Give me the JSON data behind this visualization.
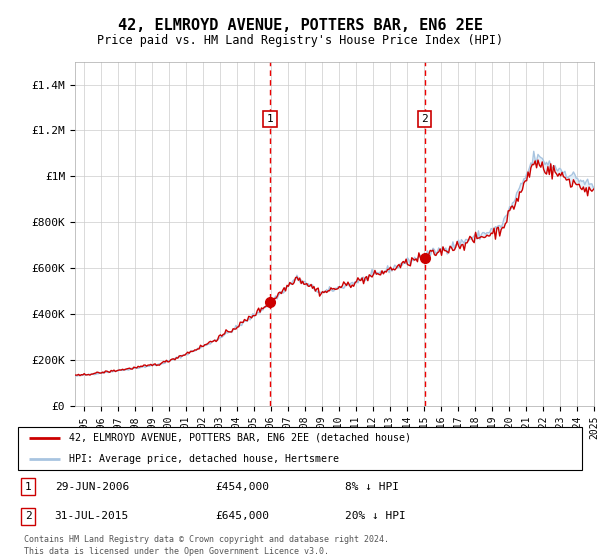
{
  "title": "42, ELMROYD AVENUE, POTTERS BAR, EN6 2EE",
  "subtitle": "Price paid vs. HM Land Registry's House Price Index (HPI)",
  "ylim": [
    0,
    1500000
  ],
  "yticks": [
    0,
    200000,
    400000,
    600000,
    800000,
    1000000,
    1200000,
    1400000
  ],
  "ytick_labels": [
    "£0",
    "£200K",
    "£400K",
    "£600K",
    "£800K",
    "£1M",
    "£1.2M",
    "£1.4M"
  ],
  "sale1_t": 2006.46,
  "sale1_price": 454000,
  "sale2_t": 2015.54,
  "sale2_price": 645000,
  "hpi_line_color": "#a8c4e0",
  "price_line_color": "#cc0000",
  "sale_marker_color": "#cc0000",
  "vline_color": "#ee0000",
  "background_fill": "#d8eaf8",
  "legend_label1": "42, ELMROYD AVENUE, POTTERS BAR, EN6 2EE (detached house)",
  "legend_label2": "HPI: Average price, detached house, Hertsmere",
  "footer1": "Contains HM Land Registry data © Crown copyright and database right 2024.",
  "footer2": "This data is licensed under the Open Government Licence v3.0.",
  "xstart_year": 1995,
  "xend_year": 2025
}
